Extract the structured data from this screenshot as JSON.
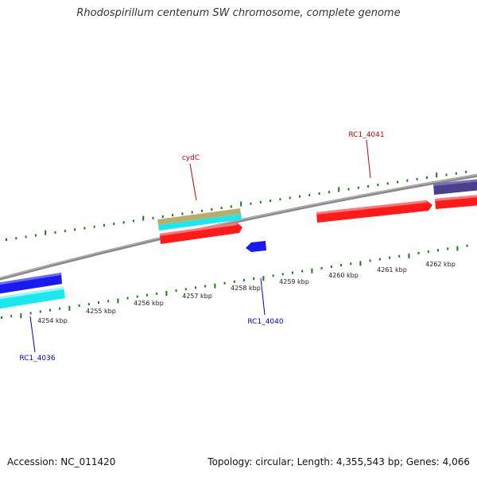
{
  "title": "Rhodospirillum centenum SW chromosome, complete genome",
  "footer": {
    "accession_label": "Accession:",
    "accession": "NC_011420",
    "topology_label": "Topology:",
    "topology": "circular",
    "length_label": "Length:",
    "length": "4,355,543 bp",
    "genes_label": "Genes:",
    "genes": "4,066"
  },
  "scale": {
    "ticks": [
      {
        "label": "4254 kbp",
        "kbp": 4254
      },
      {
        "label": "4255 kbp",
        "kbp": 4255
      },
      {
        "label": "4256 kbp",
        "kbp": 4256
      },
      {
        "label": "4257 kbp",
        "kbp": 4257
      },
      {
        "label": "4258 kbp",
        "kbp": 4258
      },
      {
        "label": "4259 kbp",
        "kbp": 4259
      },
      {
        "label": "4260 kbp",
        "kbp": 4260
      },
      {
        "label": "4261 kbp",
        "kbp": 4261
      },
      {
        "label": "4262 kbp",
        "kbp": 4262
      }
    ]
  },
  "gene_labels": [
    {
      "id": "cydC",
      "text": "cydC",
      "color": "#cc0000"
    },
    {
      "id": "RC1_4041",
      "text": "RC1_4041",
      "color": "#cc0000"
    },
    {
      "id": "RC1_4040",
      "text": "RC1_4040",
      "color": "#0000cc"
    },
    {
      "id": "RC1_4036",
      "text": "RC1_4036",
      "color": "#0000cc"
    }
  ],
  "colors": {
    "backbone": "#888888",
    "ticks": "#1a7a1a",
    "forward_cds": "#ff1a1a",
    "reverse_cds": "#1a1aee",
    "cyan_feature": "#1ae8f0",
    "tan_feature": "#b8ae6a",
    "navy_feature": "#4a3f8c"
  }
}
